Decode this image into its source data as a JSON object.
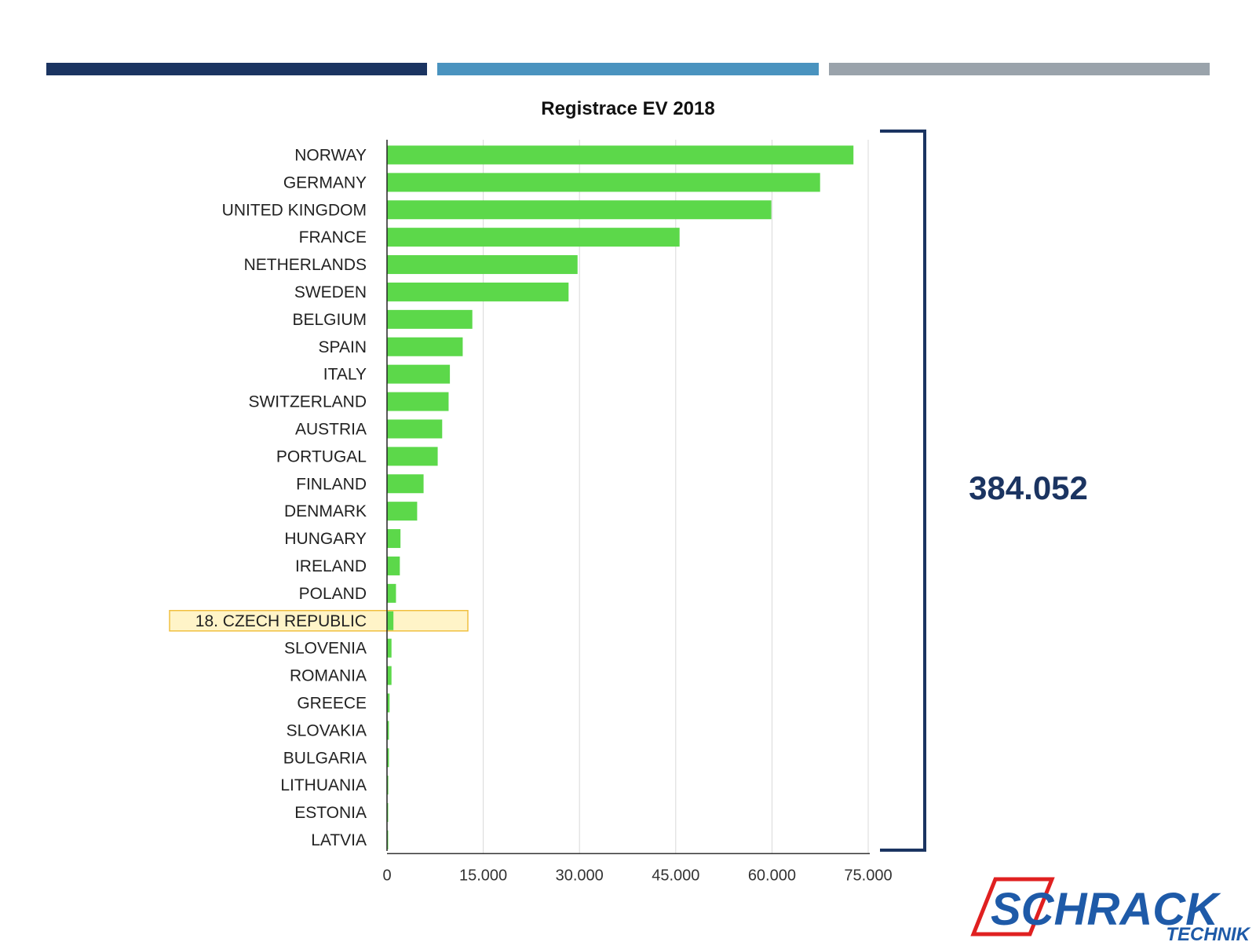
{
  "header_bars": [
    {
      "color": "#1b3461"
    },
    {
      "color": "#4a93bf"
    },
    {
      "color": "#9aa3ab"
    }
  ],
  "chart_data": {
    "type": "bar",
    "orientation": "horizontal",
    "title": "Registrace EV 2018",
    "categories": [
      "NORWAY",
      "GERMANY",
      "UNITED KINGDOM",
      "FRANCE",
      "NETHERLANDS",
      "SWEDEN",
      "BELGIUM",
      "SPAIN",
      "ITALY",
      "SWITZERLAND",
      "AUSTRIA",
      "PORTUGAL",
      "FINLAND",
      "DENMARK",
      "HUNGARY",
      "IRELAND",
      "POLAND",
      "18. CZECH REPUBLIC",
      "SLOVENIA",
      "ROMANIA",
      "GREECE",
      "SLOVAKIA",
      "BULGARIA",
      "LITHUANIA",
      "ESTONIA",
      "LATVIA"
    ],
    "values": [
      72700,
      67500,
      59900,
      45600,
      29700,
      28300,
      13300,
      11800,
      9800,
      9600,
      8600,
      7900,
      5700,
      4700,
      2100,
      2000,
      1400,
      1000,
      700,
      700,
      400,
      300,
      300,
      200,
      150,
      100
    ],
    "xlim": [
      0,
      75000
    ],
    "xticks": [
      "0",
      "15.000",
      "30.000",
      "45.000",
      "60.000",
      "75.000"
    ],
    "xtick_values": [
      0,
      15000,
      30000,
      45000,
      60000,
      75000
    ],
    "grid": "vertical",
    "highlighted_category": "18. CZECH REPUBLIC",
    "bar_color": "#5cd84a",
    "highlight_fill": "#fff4c8",
    "highlight_stroke": "#f0c040"
  },
  "total": {
    "value": "384.052",
    "color": "#1b3461"
  },
  "logo": {
    "name": "SCHRACK",
    "subtitle": "TECHNIK",
    "color_blue": "#1e5aa8",
    "color_red": "#e02020"
  }
}
